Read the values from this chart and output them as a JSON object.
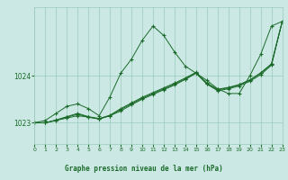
{
  "title": "Graphe pression niveau de la mer (hPa)",
  "bg_color": "#cce8e4",
  "line_color": "#1a6b2a",
  "grid_color": "#99ccbb",
  "xlim": [
    0,
    23
  ],
  "ylim": [
    1022.55,
    1025.45
  ],
  "yticks": [
    1023,
    1024
  ],
  "xticks": [
    0,
    1,
    2,
    3,
    4,
    5,
    6,
    7,
    8,
    9,
    10,
    11,
    12,
    13,
    14,
    15,
    16,
    17,
    18,
    19,
    20,
    21,
    22,
    23
  ],
  "series": [
    [
      1023.0,
      1023.05,
      1023.2,
      1023.35,
      1023.4,
      1023.3,
      1023.15,
      1023.55,
      1024.05,
      1024.35,
      1024.75,
      1025.05,
      1024.85,
      1024.5,
      1024.2,
      1024.05,
      1023.9,
      1023.72,
      1023.62,
      1023.62,
      1024.0,
      1024.45,
      1025.05,
      1025.15
    ],
    [
      1023.0,
      1023.0,
      1023.05,
      1023.1,
      1023.15,
      1023.12,
      1023.08,
      1023.15,
      1023.25,
      1023.38,
      1023.5,
      1023.6,
      1023.7,
      1023.8,
      1023.92,
      1024.05,
      1023.82,
      1023.68,
      1023.72,
      1023.78,
      1023.88,
      1024.02,
      1024.22,
      1025.15
    ],
    [
      1023.0,
      1023.0,
      1023.05,
      1023.12,
      1023.18,
      1023.12,
      1023.08,
      1023.15,
      1023.28,
      1023.4,
      1023.52,
      1023.62,
      1023.72,
      1023.82,
      1023.93,
      1024.06,
      1023.83,
      1023.7,
      1023.74,
      1023.8,
      1023.9,
      1024.05,
      1024.24,
      1025.15
    ],
    [
      1023.0,
      1023.0,
      1023.06,
      1023.13,
      1023.2,
      1023.13,
      1023.09,
      1023.16,
      1023.3,
      1023.42,
      1023.54,
      1023.64,
      1023.74,
      1023.84,
      1023.95,
      1024.07,
      1023.84,
      1023.71,
      1023.75,
      1023.81,
      1023.91,
      1024.06,
      1024.25,
      1025.15
    ]
  ]
}
